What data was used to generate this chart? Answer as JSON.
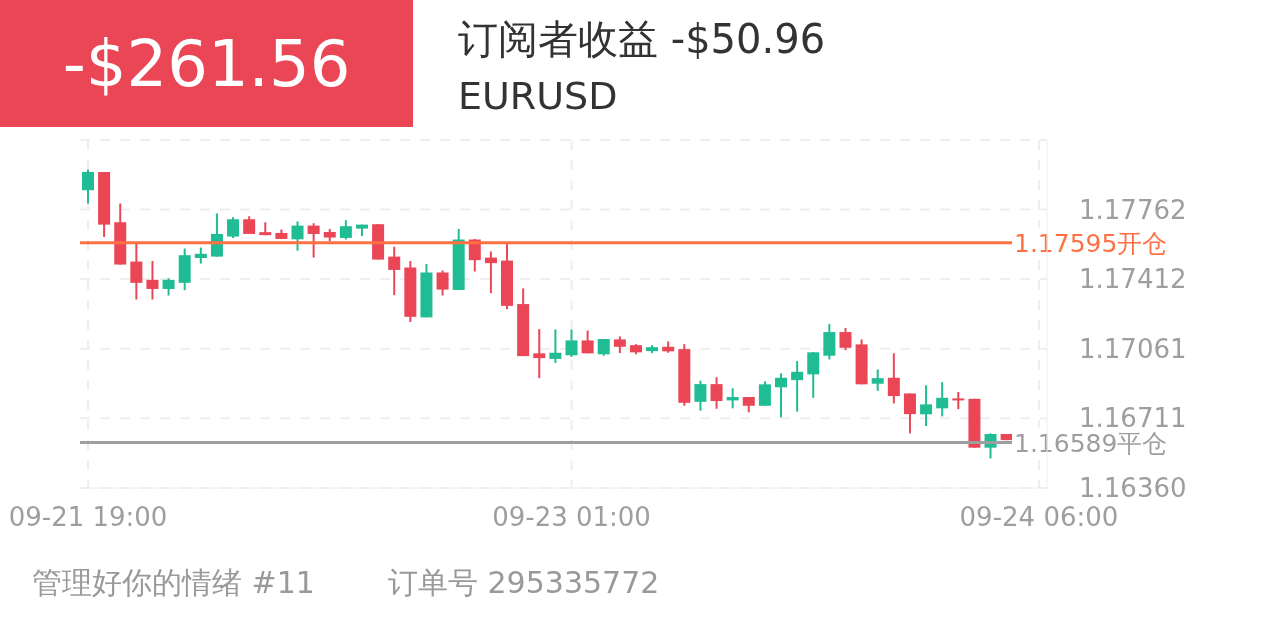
{
  "chart_data": {
    "type": "candlestick",
    "title": "订阅者收益 -$50.96",
    "subtitle": "EURUSD",
    "annotations": [
      "-$261.56",
      "管理好你的情绪 #11",
      "订单号 295335772"
    ],
    "categories": [
      "09-21 19:00",
      null,
      null,
      null,
      null,
      null,
      null,
      null,
      null,
      null,
      null,
      null,
      null,
      null,
      null,
      null,
      null,
      null,
      null,
      null,
      null,
      null,
      null,
      null,
      null,
      null,
      null,
      null,
      null,
      null,
      "09-23 01:00",
      null,
      null,
      null,
      null,
      null,
      null,
      null,
      null,
      null,
      null,
      null,
      null,
      null,
      null,
      null,
      null,
      null,
      null,
      null,
      null,
      null,
      null,
      null,
      null,
      null,
      null,
      null,
      null,
      "09-24 06:00"
    ],
    "ohlc": [
      [
        1.17859,
        1.17963,
        1.17792,
        1.17951
      ],
      [
        1.17951,
        1.17951,
        1.17624,
        1.17686
      ],
      [
        1.17698,
        1.17792,
        1.17485,
        1.17485
      ],
      [
        1.175,
        1.17591,
        1.17309,
        1.17393
      ],
      [
        1.17408,
        1.17503,
        1.17309,
        1.17362
      ],
      [
        1.17362,
        1.17416,
        1.17329,
        1.17408
      ],
      [
        1.17393,
        1.17566,
        1.17356,
        1.17532
      ],
      [
        1.17518,
        1.17571,
        1.1749,
        1.17539
      ],
      [
        1.17525,
        1.17742,
        1.17525,
        1.17639
      ],
      [
        1.17626,
        1.17723,
        1.17619,
        1.17713
      ],
      [
        1.17713,
        1.17728,
        1.17639,
        1.17639
      ],
      [
        1.17648,
        1.17698,
        1.17633,
        1.17633
      ],
      [
        1.17644,
        1.17661,
        1.17614,
        1.17614
      ],
      [
        1.17612,
        1.17702,
        1.17554,
        1.17681
      ],
      [
        1.17681,
        1.17693,
        1.1752,
        1.17639
      ],
      [
        1.17649,
        1.17664,
        1.17602,
        1.17621
      ],
      [
        1.17619,
        1.17708,
        1.17611,
        1.17678
      ],
      [
        1.17666,
        1.17686,
        1.17629,
        1.17686
      ],
      [
        1.17688,
        1.17688,
        1.1751,
        1.1751
      ],
      [
        1.17525,
        1.17574,
        1.17331,
        1.17458
      ],
      [
        1.1747,
        1.17503,
        1.17196,
        1.17222
      ],
      [
        1.17219,
        1.17488,
        1.17219,
        1.17445
      ],
      [
        1.17445,
        1.17455,
        1.17329,
        1.17359
      ],
      [
        1.17357,
        1.17664,
        1.17357,
        1.17611
      ],
      [
        1.17611,
        1.17614,
        1.1745,
        1.17507
      ],
      [
        1.1752,
        1.17551,
        1.17341,
        1.17492
      ],
      [
        1.17505,
        1.17594,
        1.1726,
        1.17277
      ],
      [
        1.17286,
        1.17365,
        1.17024,
        1.17024
      ],
      [
        1.17038,
        1.1716,
        1.16913,
        1.17014
      ],
      [
        1.1701,
        1.17158,
        1.1699,
        1.17041
      ],
      [
        1.17028,
        1.17158,
        1.1702,
        1.17103
      ],
      [
        1.17103,
        1.17153,
        1.17038,
        1.17038
      ],
      [
        1.17033,
        1.1711,
        1.17026,
        1.1711
      ],
      [
        1.17108,
        1.17123,
        1.17039,
        1.17071
      ],
      [
        1.17079,
        1.17084,
        1.17033,
        1.17043
      ],
      [
        1.17049,
        1.17079,
        1.17039,
        1.17069
      ],
      [
        1.17071,
        1.17098,
        1.17041,
        1.17048
      ],
      [
        1.17059,
        1.17084,
        1.16774,
        1.16789
      ],
      [
        1.16794,
        1.169,
        1.16749,
        1.16883
      ],
      [
        1.16883,
        1.16918,
        1.16759,
        1.16798
      ],
      [
        1.16801,
        1.16862,
        1.16761,
        1.16818
      ],
      [
        1.16818,
        1.16818,
        1.16741,
        1.16774
      ],
      [
        1.16774,
        1.16897,
        1.16774,
        1.16882
      ],
      [
        1.16867,
        1.16937,
        1.16716,
        1.16915
      ],
      [
        1.16903,
        1.16999,
        1.16744,
        1.16945
      ],
      [
        1.16932,
        1.17044,
        1.16814,
        1.17043
      ],
      [
        1.17026,
        1.17185,
        1.17007,
        1.17145
      ],
      [
        1.17145,
        1.17166,
        1.17054,
        1.17066
      ],
      [
        1.17083,
        1.17108,
        1.16882,
        1.16882
      ],
      [
        1.16885,
        1.16957,
        1.16849,
        1.16913
      ],
      [
        1.16915,
        1.17038,
        1.16786,
        1.16823
      ],
      [
        1.16836,
        1.16836,
        1.16635,
        1.16732
      ],
      [
        1.16731,
        1.16877,
        1.16672,
        1.16781
      ],
      [
        1.16761,
        1.16893,
        1.16721,
        1.16814
      ],
      [
        1.16811,
        1.16843,
        1.16757,
        1.16801
      ],
      [
        1.16809,
        1.16809,
        1.16563,
        1.16563
      ],
      [
        1.16563,
        1.16635,
        1.16509,
        1.16632
      ],
      [
        1.16632,
        1.16632,
        1.16601,
        1.16601
      ],
      null,
      null
    ],
    "colors": [
      "#20bc93",
      "#ea4656",
      "#ea4656",
      "#ea4656",
      "#ea4656",
      "#20bc93",
      "#20bc93",
      "#20bc93",
      "#20bc93",
      "#20bc93",
      "#ea4656",
      "#ea4656",
      "#ea4656",
      "#20bc93",
      "#ea4656",
      "#ea4656",
      "#20bc93",
      "#20bc93",
      "#ea4656",
      "#ea4656",
      "#ea4656",
      "#20bc93",
      "#ea4656",
      "#20bc93",
      "#ea4656",
      "#ea4656",
      "#ea4656",
      "#ea4656",
      "#ea4656",
      "#20bc93",
      "#20bc93",
      "#ea4656",
      "#20bc93",
      "#ea4656",
      "#ea4656",
      "#20bc93",
      "#ea4656",
      "#ea4656",
      "#20bc93",
      "#ea4656",
      "#20bc93",
      "#ea4656",
      "#20bc93",
      "#20bc93",
      "#20bc93",
      "#20bc93",
      "#20bc93",
      "#ea4656",
      "#ea4656",
      "#20bc93",
      "#ea4656",
      "#ea4656",
      "#20bc93",
      "#20bc93",
      "#ea4656",
      "#ea4656",
      "#20bc93",
      "#ea4656",
      null,
      null
    ],
    "ylim": [
      1.1636,
      1.18112
    ],
    "yticks": [
      {
        "value": 1.1636,
        "label": "1.16360"
      },
      1.16711,
      1.17061,
      1.17412,
      1.17762,
      {
        "value": 1.18112,
        "label": null
      }
    ],
    "grid": true,
    "ref_lines": [
      {
        "axis": "y",
        "value": 1.17595,
        "label": "1.17595开仓",
        "color": "#ff7043"
      },
      {
        "axis": "y",
        "value": 1.16589,
        "label": "1.16589平仓",
        "color": "#9e9e9e"
      }
    ]
  }
}
